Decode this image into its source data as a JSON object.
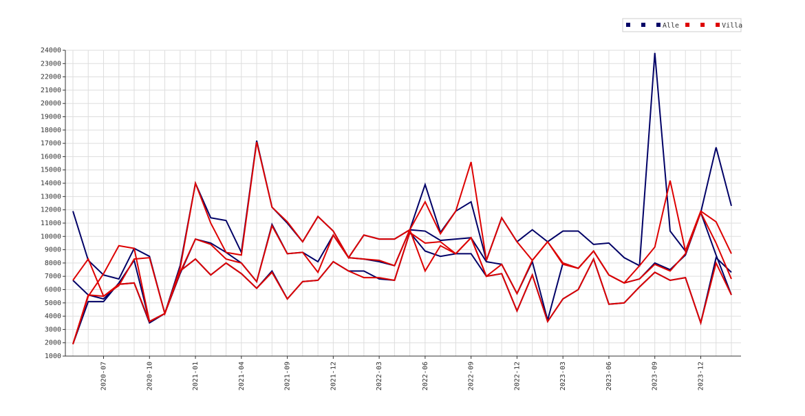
{
  "chart_data": {
    "type": "line",
    "categories": [
      null,
      null,
      "2020-07",
      null,
      null,
      "2020-10",
      null,
      null,
      "2021-01",
      null,
      null,
      "2021-04",
      null,
      null,
      "2021-09",
      null,
      null,
      "2021-12",
      null,
      null,
      "2022-03",
      null,
      null,
      "2022-06",
      null,
      null,
      "2022-09",
      null,
      null,
      "2022-12",
      null,
      null,
      "2023-03",
      null,
      null,
      "2023-06",
      null,
      null,
      "2023-09",
      null,
      null,
      "2023-12",
      null,
      null
    ],
    "series": [
      {
        "color": "#000066",
        "values": [
          11900,
          8200,
          7100,
          6800,
          9100,
          8500,
          4200,
          7800,
          14000,
          11400,
          11200,
          8800,
          17200,
          12200,
          11000,
          9600,
          11500,
          10400,
          8400,
          10100,
          9800,
          9800,
          10500,
          13900,
          10300,
          11900,
          12600,
          8200,
          11400,
          9600,
          10500,
          9600,
          10400,
          10400,
          9400,
          9500,
          8400,
          7800,
          23800,
          10400,
          8900,
          11800,
          16700,
          12300
        ]
      },
      {
        "color": "#000066",
        "values": [
          6700,
          5600,
          5300,
          6400,
          6500,
          3500,
          4200,
          7200,
          9800,
          9500,
          8800,
          8000,
          6600,
          10900,
          8700,
          8800,
          8100,
          10100,
          8400,
          8300,
          8100,
          7800,
          10500,
          10400,
          9700,
          9800,
          9900,
          8100,
          7900,
          5700,
          8100,
          3700,
          8000,
          7600,
          8900,
          7100,
          6500,
          6800,
          8000,
          7500,
          8600,
          11800,
          8600,
          5600
        ]
      },
      {
        "name": "Alle",
        "color": "#000066",
        "values": [
          1900,
          5100,
          5100,
          6500,
          8200,
          3600,
          4200,
          7400,
          8300,
          7100,
          8000,
          7200,
          6100,
          7400,
          5300,
          6600,
          6700,
          8100,
          7400,
          7400,
          6800,
          6700,
          10300,
          8900,
          8500,
          8700,
          8700,
          7000,
          7200,
          4400,
          7100,
          3600,
          5300,
          6000,
          8300,
          4900,
          5000,
          6200,
          7300,
          6700,
          6900,
          3500,
          8400,
          7300
        ]
      },
      {
        "color": "#dd0000",
        "values": [
          6700,
          8300,
          5500,
          6300,
          8300,
          8400,
          4200,
          7600,
          14000,
          11000,
          8800,
          8600,
          17100,
          12200,
          11100,
          9600,
          11500,
          10400,
          8400,
          10100,
          9800,
          9800,
          10500,
          12600,
          10200,
          11900,
          15600,
          8200,
          11400,
          9600,
          8200,
          9600,
          8000,
          7600,
          8900,
          7100,
          6500,
          7800,
          9200,
          14200,
          8900,
          11900,
          11100,
          8700
        ]
      },
      {
        "color": "#dd0000",
        "values": [
          1900,
          5500,
          7200,
          9300,
          9100,
          3600,
          4200,
          7300,
          9800,
          9400,
          8300,
          8000,
          6600,
          10800,
          8700,
          8800,
          7300,
          10100,
          8400,
          8300,
          8200,
          7800,
          10500,
          7400,
          9300,
          8700,
          9900,
          7000,
          7900,
          5700,
          8200,
          9600,
          7900,
          7600,
          8900,
          7100,
          6500,
          6800,
          7900,
          7400,
          8700,
          11800,
          9500,
          6800
        ]
      },
      {
        "name": "Villa",
        "color": "#dd0000",
        "values": [
          1900,
          5600,
          5500,
          6400,
          6500,
          3600,
          4200,
          7400,
          8300,
          7100,
          8000,
          7200,
          6100,
          7300,
          5300,
          6600,
          6700,
          8100,
          7400,
          6900,
          6900,
          6700,
          10300,
          9500,
          9600,
          8700,
          9900,
          7000,
          7200,
          4400,
          7100,
          3600,
          5300,
          6000,
          8300,
          4900,
          5000,
          6200,
          7300,
          6700,
          6900,
          3500,
          8000,
          5600
        ]
      }
    ],
    "ylim": [
      1000,
      24000
    ],
    "yticks": [
      1000,
      2000,
      3000,
      4000,
      5000,
      6000,
      7000,
      8000,
      9000,
      10000,
      11000,
      12000,
      13000,
      14000,
      15000,
      16000,
      17000,
      18000,
      19000,
      20000,
      21000,
      22000,
      23000,
      24000
    ],
    "grid": true,
    "legend": "upper right"
  }
}
